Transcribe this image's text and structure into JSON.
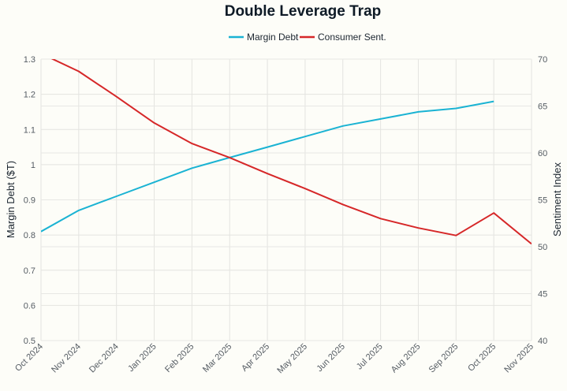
{
  "chart_data": {
    "type": "line",
    "title": "Double Leverage Trap",
    "categories": [
      "Oct 2024",
      "Nov 2024",
      "Dec 2024",
      "Jan 2025",
      "Feb 2025",
      "Mar 2025",
      "Apr 2025",
      "May 2025",
      "Jun 2025",
      "Jul 2025",
      "Aug 2025",
      "Sep 2025",
      "Oct 2025",
      "Nov 2025"
    ],
    "series": [
      {
        "name": "Margin Debt",
        "axis": "left",
        "color": "#1ab3d3",
        "values": [
          0.81,
          0.87,
          0.91,
          0.95,
          0.99,
          1.02,
          1.05,
          1.08,
          1.11,
          1.13,
          1.15,
          1.16,
          1.18,
          null
        ]
      },
      {
        "name": "Consumer Sent.",
        "axis": "right",
        "color": "#d62728",
        "values": [
          70.6,
          68.7,
          66.0,
          63.2,
          61.0,
          59.5,
          57.8,
          56.2,
          54.5,
          53.0,
          52.0,
          51.2,
          53.6,
          50.3
        ]
      }
    ],
    "ylabel": "Margin Debt ($T)",
    "ylim": [
      0.5,
      1.3
    ],
    "yticks": [
      "0.5",
      "0.6",
      "0.7",
      "0.8",
      "0.9",
      "1",
      "1.1",
      "1.2",
      "1.3"
    ],
    "y2label": "Sentiment Index",
    "y2lim": [
      40,
      70
    ],
    "y2ticks": [
      "40",
      "45",
      "50",
      "55",
      "60",
      "65",
      "70"
    ],
    "grid": true,
    "legend": "top-center"
  }
}
